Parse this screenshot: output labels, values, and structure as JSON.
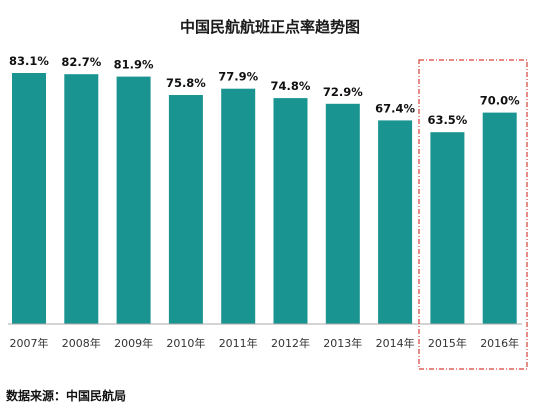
{
  "chart_data": {
    "type": "bar",
    "title": "中国民航航班正点率趋势图",
    "categories": [
      "2007年",
      "2008年",
      "2009年",
      "2010年",
      "2011年",
      "2012年",
      "2013年",
      "2014年",
      "2015年",
      "2016年"
    ],
    "values": [
      83.1,
      82.7,
      81.9,
      75.8,
      77.9,
      74.8,
      72.9,
      67.4,
      63.5,
      70.0
    ],
    "data_labels": [
      "83.1%",
      "82.7%",
      "81.9%",
      "75.8%",
      "77.9%",
      "74.8%",
      "72.9%",
      "67.4%",
      "63.5%",
      "70.0%"
    ],
    "xlabel": "",
    "ylabel": "",
    "ylim": [
      0,
      85
    ],
    "grid": false,
    "highlight_categories": [
      "2015年",
      "2016年"
    ],
    "highlight_style": "dashed-box"
  },
  "source_note": "数据来源：中国民航局",
  "colors": {
    "bar": "#1a9490",
    "highlight_border": "#d9403a",
    "axis": "#aaaaaa"
  }
}
